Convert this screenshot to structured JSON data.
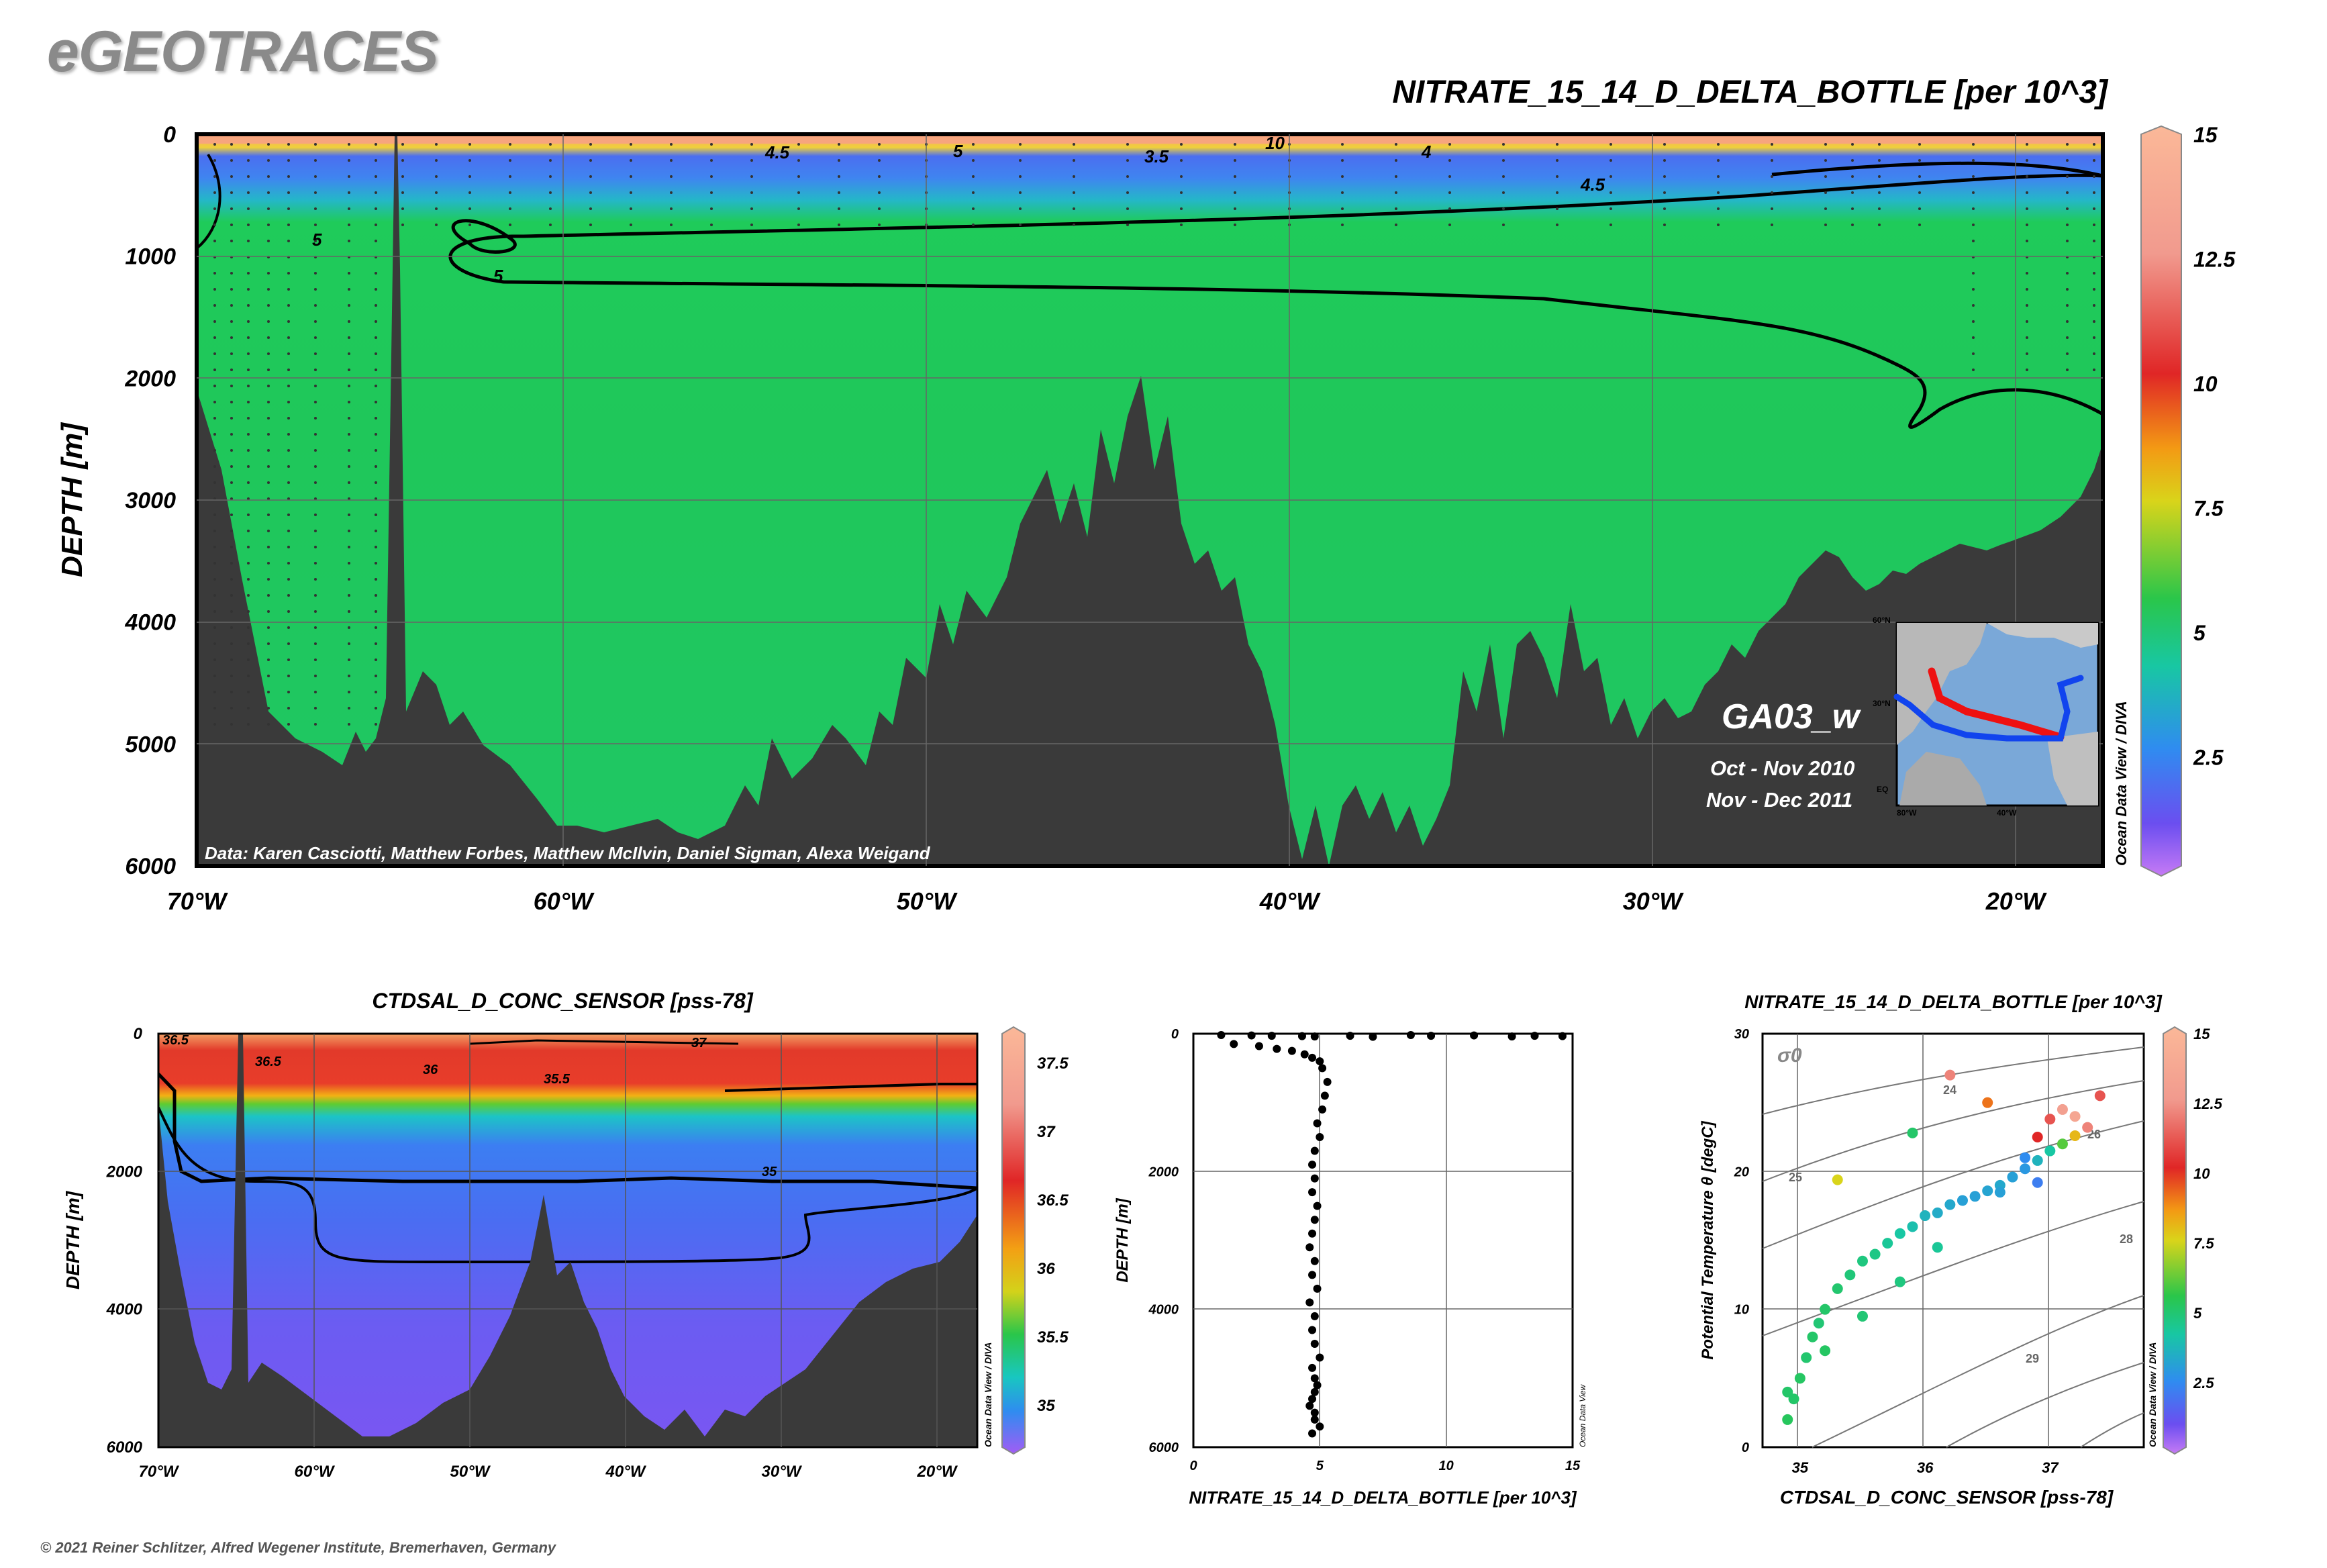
{
  "header": {
    "logo": "eGEOTRACES",
    "copyright": "© 2021 Reiner Schlitzer, Alfred Wegener Institute, Bremerhaven, Germany"
  },
  "main_section": {
    "title": "NITRATE_15_14_D_DELTA_BOTTLE [per 10^3]",
    "ylabel": "DEPTH [m]",
    "credit": "Data: Karen Casciotti, Matthew Forbes, Matthew McIlvin, Daniel Sigman, Alexa Weigand",
    "cruise": "GA03_w",
    "dates": [
      "Oct - Nov 2010",
      "Nov - Dec 2011"
    ],
    "watermark": "Ocean Data View / DIVA",
    "map_labels": [
      "60°N",
      "30°N",
      "EQ",
      "80°W",
      "40°W"
    ],
    "contour_labels": [
      "10",
      "4.5",
      "5",
      "3.5",
      "4",
      "4.5",
      "5",
      "5"
    ]
  },
  "colorbar_main": {
    "ticks": [
      "15",
      "12.5",
      "10",
      "7.5",
      "5",
      "2.5"
    ]
  },
  "salinity_section": {
    "title": "CTDSAL_D_CONC_SENSOR [pss-78]",
    "ylabel": "DEPTH [m]",
    "watermark": "Ocean Data View / DIVA",
    "contour_labels": [
      "36.5",
      "36.5",
      "36",
      "37",
      "35.5",
      "35"
    ],
    "colorbar_ticks": [
      "37.5",
      "37",
      "36.5",
      "36",
      "35.5",
      "35"
    ]
  },
  "profile": {
    "xlabel": "NITRATE_15_14_D_DELTA_BOTTLE [per 10^3]",
    "ylabel": "DEPTH [m]",
    "watermark": "Ocean Data View"
  },
  "ts_plot": {
    "title": "NITRATE_15_14_D_DELTA_BOTTLE [per 10^3]",
    "xlabel": "CTDSAL_D_CONC_SENSOR [pss-78]",
    "ylabel": "Potential Temperature θ [degC]",
    "sigma_label": "σ0",
    "isopycnal_labels": [
      "24",
      "25",
      "26",
      "28",
      "29"
    ],
    "watermark": "Ocean Data View / DIVA",
    "colorbar_ticks": [
      "15",
      "12.5",
      "10",
      "7.5",
      "5",
      "2.5"
    ]
  },
  "colors": {
    "seafloor": "#3a3a3a",
    "green_field": "#1fcb5a",
    "blue_layer": "#3f78f0",
    "purple_field": "#7a5cf2"
  },
  "chart_data": [
    {
      "type": "heatmap",
      "title": "NITRATE_15_14_D_DELTA_BOTTLE [per 10^3]",
      "ylabel": "DEPTH [m]",
      "x_ticks": [
        "70°W",
        "60°W",
        "50°W",
        "40°W",
        "30°W",
        "20°W"
      ],
      "y_ticks": [
        "0",
        "1000",
        "2000",
        "3000",
        "4000",
        "5000",
        "6000"
      ],
      "xlim": [
        -70,
        -17.5
      ],
      "ylim": [
        6000,
        0
      ],
      "colorbar": {
        "min": 0,
        "max": 15,
        "ticks": [
          2.5,
          5,
          7.5,
          10,
          12.5,
          15
        ]
      },
      "contours": [
        3.5,
        4,
        4.5,
        5,
        10
      ]
    },
    {
      "type": "heatmap",
      "title": "CTDSAL_D_CONC_SENSOR [pss-78]",
      "ylabel": "DEPTH [m]",
      "x_ticks": [
        "70°W",
        "60°W",
        "50°W",
        "40°W",
        "30°W",
        "20°W"
      ],
      "y_ticks": [
        "0",
        "2000",
        "4000",
        "6000"
      ],
      "xlim": [
        -70,
        -17.5
      ],
      "ylim": [
        6000,
        0
      ],
      "colorbar": {
        "min": 34.8,
        "max": 37.8,
        "ticks": [
          35,
          35.5,
          36,
          36.5,
          37,
          37.5
        ]
      },
      "contours": [
        35,
        35.5,
        36,
        36.5,
        37
      ]
    },
    {
      "type": "scatter",
      "xlabel": "NITRATE_15_14_D_DELTA_BOTTLE [per 10^3]",
      "ylabel": "DEPTH [m]",
      "x_ticks": [
        "0",
        "5",
        "10",
        "15"
      ],
      "y_ticks": [
        "0",
        "2000",
        "4000",
        "6000"
      ],
      "xlim": [
        0,
        15
      ],
      "ylim": [
        6000,
        0
      ],
      "x": [
        1.1,
        2.3,
        3.1,
        4.3,
        4.8,
        6.2,
        7.1,
        8.6,
        9.4,
        11.1,
        12.6,
        13.5,
        14.6,
        1.6,
        2.6,
        3.3,
        3.9,
        4.4,
        4.7,
        5.0,
        5.1,
        5.3,
        5.2,
        5.1,
        4.9,
        5.0,
        4.8,
        4.7,
        4.8,
        4.7,
        4.9,
        4.8,
        4.7,
        4.6,
        4.8,
        4.7,
        4.9,
        4.6,
        4.8,
        4.7,
        4.8,
        5.0,
        4.7,
        4.8,
        4.9,
        4.8,
        4.7,
        4.6,
        4.8,
        4.8,
        5.0,
        4.7
      ],
      "y": [
        20,
        25,
        30,
        35,
        40,
        30,
        45,
        20,
        30,
        25,
        40,
        30,
        35,
        150,
        180,
        220,
        250,
        300,
        350,
        400,
        500,
        700,
        900,
        1100,
        1300,
        1500,
        1700,
        1900,
        2100,
        2300,
        2500,
        2700,
        2900,
        3100,
        3300,
        3500,
        3700,
        3900,
        4100,
        4300,
        4500,
        4700,
        4850,
        5000,
        5100,
        5200,
        5300,
        5400,
        5500,
        5600,
        5700,
        5800
      ]
    },
    {
      "type": "scatter",
      "title": "NITRATE_15_14_D_DELTA_BOTTLE [per 10^3]",
      "xlabel": "CTDSAL_D_CONC_SENSOR [pss-78]",
      "ylabel": "Potential Temperature θ [degC]",
      "x_ticks": [
        "35",
        "36",
        "37"
      ],
      "y_ticks": [
        "0",
        "10",
        "20",
        "30"
      ],
      "xlim": [
        34.7,
        37.75
      ],
      "ylim": [
        0,
        30
      ],
      "x": [
        34.9,
        34.95,
        35.0,
        35.05,
        35.1,
        35.15,
        35.2,
        35.3,
        35.4,
        35.5,
        35.6,
        35.7,
        35.8,
        35.9,
        36.0,
        36.1,
        36.2,
        36.3,
        36.4,
        36.5,
        36.6,
        36.7,
        36.8,
        36.9,
        37.0,
        37.1,
        37.2,
        37.3,
        36.8,
        36.9,
        37.0,
        37.1,
        35.3,
        35.9,
        36.2,
        36.5,
        37.2,
        37.4,
        36.6,
        36.9,
        34.9,
        35.2,
        35.5,
        35.8,
        36.1
      ],
      "y": [
        2.0,
        3.5,
        5.0,
        6.5,
        8.0,
        9.0,
        10.0,
        11.5,
        12.5,
        13.5,
        14.0,
        14.8,
        15.5,
        16.0,
        16.8,
        17.0,
        17.6,
        17.9,
        18.2,
        18.6,
        19.0,
        19.6,
        20.2,
        20.8,
        21.5,
        22.0,
        22.6,
        23.2,
        21.0,
        22.5,
        23.8,
        24.5,
        19.4,
        22.8,
        27.0,
        25.0,
        24.0,
        25.5,
        18.5,
        19.2,
        4.0,
        7.0,
        9.5,
        12.0,
        14.5
      ],
      "c": [
        5.2,
        5.0,
        5.1,
        4.9,
        5.0,
        4.8,
        5.0,
        4.9,
        4.7,
        4.6,
        4.5,
        4.2,
        4.0,
        3.8,
        3.5,
        3.3,
        3.2,
        3.0,
        3.0,
        3.1,
        3.2,
        3.0,
        2.8,
        3.5,
        4.0,
        6.0,
        8.0,
        12.0,
        2.5,
        10.0,
        11.0,
        13.0,
        7.5,
        5.0,
        12.0,
        9.0,
        13.5,
        11.0,
        3.0,
        2.2,
        5.0,
        5.1,
        4.8,
        4.6,
        4.2
      ]
    }
  ]
}
